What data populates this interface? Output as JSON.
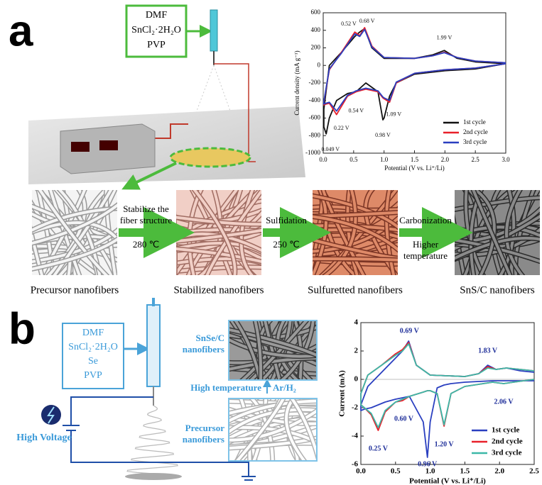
{
  "panel_a": {
    "label": "a",
    "precursor_box": [
      "DMF",
      "SnCl₂·2H₂O",
      "PVP"
    ],
    "fibers": [
      "Precursor nanofibers",
      "Stabilized  nanofibers",
      "Sulfuretted nanofibers",
      "SnS/C nanofibers"
    ],
    "steps": [
      {
        "above": [
          "Stabilize the",
          "fiber structure"
        ],
        "below": [
          "280 ℃"
        ]
      },
      {
        "above": [
          "Sulfidation"
        ],
        "below": [
          "250 ℃"
        ]
      },
      {
        "above": [
          "Carbonization"
        ],
        "below": [
          "Higher",
          "temperature"
        ]
      }
    ]
  },
  "panel_b": {
    "label": "b",
    "precursor_box": [
      "DMF",
      "SnCl₂·2H₂O",
      "Se",
      "PVP"
    ],
    "top_fiber": [
      "SnSe/C",
      "nanofibers"
    ],
    "bottom_fiber": [
      "Precursor",
      "nanofibers"
    ],
    "treatment": "High temperature",
    "atmosphere": "Ar/H₂",
    "voltage": "High Voltage"
  },
  "chart_data": [
    {
      "type": "line",
      "xlabel": "Potential (V vs. Li⁺/Li)",
      "ylabel": "Current density (mA g⁻¹)",
      "x": [
        3.0,
        2.5,
        2.0,
        1.5,
        1.2,
        1.09,
        1.0,
        0.98,
        0.9,
        0.7,
        0.54,
        0.4,
        0.22,
        0.1,
        0.049,
        0.01,
        0.01,
        0.1,
        0.3,
        0.52,
        0.6,
        0.68,
        0.8,
        1.0,
        1.5,
        1.8,
        1.99,
        2.2,
        2.5,
        3.0
      ],
      "series": [
        {
          "name": "1st cycle",
          "color": "#111111",
          "values": [
            20,
            -40,
            -60,
            -100,
            -200,
            -350,
            -600,
            -620,
            -300,
            -200,
            -300,
            -320,
            -400,
            -600,
            -780,
            -700,
            -500,
            0,
            150,
            330,
            380,
            420,
            200,
            80,
            80,
            120,
            170,
            80,
            40,
            20
          ]
        },
        {
          "name": "2nd cycle",
          "color": "#e8202a",
          "values": [
            20,
            -30,
            -50,
            -90,
            -200,
            -420,
            -380,
            -370,
            -300,
            -270,
            -300,
            -350,
            -560,
            -430,
            -440,
            -450,
            -420,
            -50,
            150,
            380,
            340,
            430,
            220,
            90,
            80,
            110,
            150,
            90,
            50,
            30
          ]
        },
        {
          "name": "3rd cycle",
          "color": "#2a3fc0",
          "values": [
            20,
            -30,
            -50,
            -90,
            -190,
            -400,
            -370,
            -360,
            -290,
            -260,
            -290,
            -340,
            -520,
            -420,
            -430,
            -440,
            -410,
            -40,
            140,
            360,
            330,
            410,
            210,
            90,
            80,
            110,
            145,
            90,
            50,
            30
          ]
        }
      ],
      "xlim": [
        0,
        3
      ],
      "ylim": [
        -1000,
        600
      ],
      "xticks": [
        {
          "value": 0,
          "label": "0.0"
        },
        0.5,
        {
          "value": 1,
          "label": "1.0"
        },
        1.5,
        {
          "value": 2,
          "label": "2.0"
        },
        2.5,
        {
          "value": 3,
          "label": "3.0"
        }
      ],
      "yticks": [
        -1000,
        -800,
        -600,
        -400,
        -200,
        0,
        200,
        400,
        600
      ],
      "annotations": [
        "0.52 V",
        "0.68 V",
        "1.99 V",
        "0.54 V",
        "1.09 V",
        "0.98 V",
        "0.22 V",
        "0.049 V"
      ],
      "legend": "lower right"
    },
    {
      "type": "line",
      "xlabel": "Potential (V vs. Li⁺/Li)",
      "ylabel": "Current (mA)",
      "x": [
        2.5,
        2.2,
        2.06,
        1.9,
        1.5,
        1.3,
        1.2,
        1.1,
        1.0,
        0.96,
        0.9,
        0.7,
        0.6,
        0.5,
        0.35,
        0.25,
        0.15,
        0.05,
        0.0,
        0.0,
        0.1,
        0.3,
        0.5,
        0.6,
        0.69,
        0.8,
        1.0,
        1.5,
        1.7,
        1.83,
        1.95,
        2.1,
        2.3,
        2.5
      ],
      "series": [
        {
          "name": "1st cycle",
          "color": "#2a3fc0",
          "values": [
            -0.1,
            -0.1,
            -0.1,
            -0.1,
            -0.2,
            -0.3,
            -0.4,
            -0.6,
            -3,
            -5.5,
            -3,
            -1.2,
            -1.3,
            -1.4,
            -1.6,
            -1.8,
            -2.0,
            -2.1,
            -2.2,
            -1.8,
            -0.5,
            0.5,
            1.5,
            2.0,
            2.7,
            1.0,
            0.3,
            0.2,
            0.4,
            1.0,
            0.7,
            0.8,
            0.6,
            0.5
          ]
        },
        {
          "name": "2nd cycle",
          "color": "#e8202a",
          "values": [
            0,
            -0.2,
            -0.3,
            -0.2,
            -0.5,
            -1.0,
            -3.3,
            -1.0,
            -0.8,
            -0.8,
            -0.9,
            -1.2,
            -1.5,
            -1.6,
            -2.3,
            -3.6,
            -2.5,
            -2.0,
            -1.8,
            -1.0,
            0.3,
            1.0,
            1.8,
            2.1,
            2.6,
            1.0,
            0.3,
            0.2,
            0.4,
            0.9,
            0.7,
            0.8,
            0.7,
            0.6
          ]
        },
        {
          "name": "3rd cycle",
          "color": "#3cb8a8",
          "values": [
            0,
            -0.2,
            -0.3,
            -0.2,
            -0.5,
            -1.0,
            -3.2,
            -1.0,
            -0.8,
            -0.8,
            -0.9,
            -1.2,
            -1.4,
            -1.6,
            -2.2,
            -3.4,
            -2.4,
            -2.0,
            -1.8,
            -1.0,
            0.3,
            1.0,
            1.7,
            2.0,
            2.5,
            1.0,
            0.3,
            0.2,
            0.4,
            0.8,
            0.7,
            0.8,
            0.7,
            0.6
          ]
        }
      ],
      "xlim": [
        0,
        2.5
      ],
      "ylim": [
        -6,
        4
      ],
      "xticks": [
        {
          "value": 0,
          "label": "0.0"
        },
        0.5,
        {
          "value": 1,
          "label": "1.0"
        },
        1.5,
        {
          "value": 2,
          "label": "2.0"
        },
        2.5
      ],
      "yticks": [
        -6,
        -4,
        -2,
        0,
        2,
        4
      ],
      "annotations": [
        "0.69 V",
        "1.83 V",
        "2.06 V",
        "1.20 V",
        "0.96 V",
        "0.60 V",
        "0.25 V"
      ],
      "legend": "lower right"
    }
  ]
}
